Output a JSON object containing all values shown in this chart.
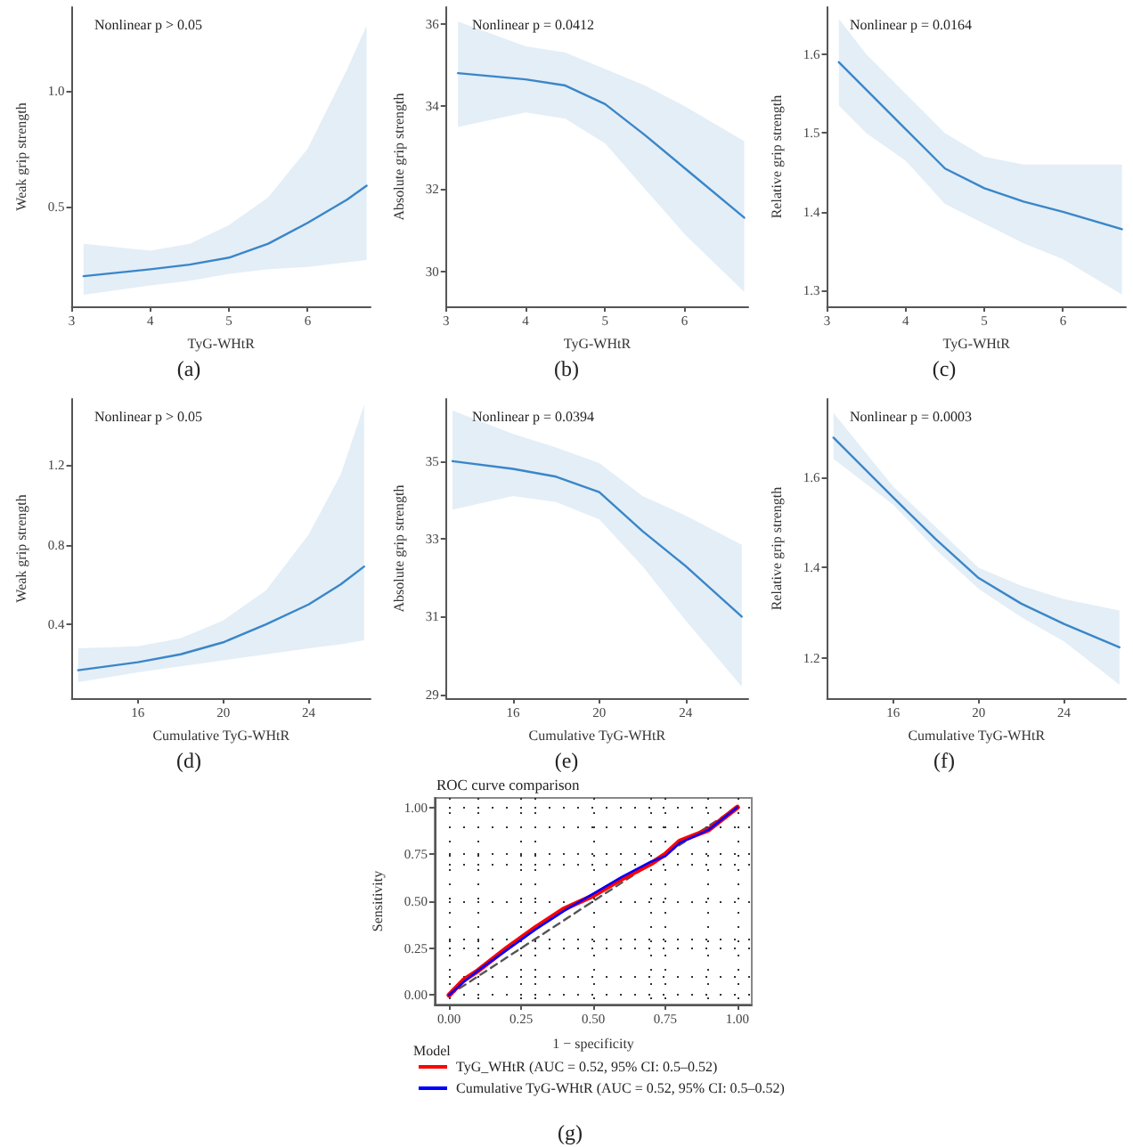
{
  "chart_data": [
    {
      "type": "line",
      "xlabel": "TyG-WHtR",
      "ylabel": "Weak grip strength",
      "annotations": [
        "Nonlinear p > 0.05",
        "(a)"
      ],
      "marker": "none",
      "grid": false,
      "x": [
        3.15,
        4,
        4.5,
        5,
        5.5,
        6,
        6.5,
        6.75
      ],
      "xlim": [
        3,
        6.8
      ],
      "xticks": [
        3,
        4,
        5,
        6
      ],
      "ylim": [
        0.07,
        1.36
      ],
      "yticks": [
        0.5,
        {
          "value": 1,
          "label": "1.0"
        }
      ],
      "series": [
        {
          "color": "#3a86c8",
          "values": [
            0.2,
            0.23,
            0.25,
            0.28,
            0.34,
            0.43,
            0.53,
            0.59
          ],
          "lower": [
            0.12,
            0.16,
            0.18,
            0.21,
            0.23,
            0.24,
            0.26,
            0.27
          ],
          "upper": [
            0.34,
            0.31,
            0.34,
            0.42,
            0.54,
            0.75,
            1.09,
            1.28
          ]
        }
      ]
    },
    {
      "type": "line",
      "xlabel": "TyG-WHtR",
      "ylabel": "Absolute grip strength",
      "annotations": [
        "Nonlinear p = 0.0412",
        "(b)"
      ],
      "marker": "none",
      "grid": false,
      "x": [
        3.15,
        4,
        4.5,
        5,
        5.5,
        6,
        6.75
      ],
      "xlim": [
        3,
        6.8
      ],
      "xticks": [
        3,
        4,
        5,
        6
      ],
      "ylim": [
        29.15,
        36.4
      ],
      "yticks": [
        30,
        32,
        34,
        36
      ],
      "series": [
        {
          "color": "#3a86c8",
          "values": [
            34.8,
            34.65,
            34.5,
            34.05,
            33.3,
            32.5,
            31.3
          ],
          "lower": [
            33.5,
            33.85,
            33.7,
            33.1,
            32.0,
            30.9,
            29.5
          ],
          "upper": [
            36.05,
            35.45,
            35.3,
            34.9,
            34.5,
            34.0,
            33.15
          ]
        }
      ]
    },
    {
      "type": "line",
      "xlabel": "TyG-WHtR",
      "ylabel": "Relative grip strength",
      "annotations": [
        "Nonlinear p = 0.0164",
        "(c)"
      ],
      "marker": "none",
      "grid": false,
      "x": [
        3.15,
        3.5,
        4,
        4.5,
        5,
        5.5,
        6,
        6.75
      ],
      "xlim": [
        3,
        6.8
      ],
      "xticks": [
        3,
        4,
        5,
        6
      ],
      "ylim": [
        1.28,
        1.66
      ],
      "yticks": [
        1.3,
        1.4,
        1.5,
        1.6
      ],
      "series": [
        {
          "color": "#3a86c8",
          "values": [
            1.59,
            1.555,
            1.505,
            1.455,
            1.43,
            1.413,
            1.4,
            1.378
          ],
          "lower": [
            1.535,
            1.5,
            1.465,
            1.41,
            1.385,
            1.36,
            1.34,
            1.295
          ],
          "upper": [
            1.645,
            1.6,
            1.55,
            1.5,
            1.47,
            1.46,
            1.46,
            1.46
          ]
        }
      ]
    },
    {
      "type": "line",
      "xlabel": "Cumulative TyG-WHtR",
      "ylabel": "Weak grip strength",
      "annotations": [
        "Nonlinear p > 0.05",
        "(d)"
      ],
      "marker": "none",
      "grid": false,
      "x": [
        13.2,
        16,
        18,
        20,
        22,
        24,
        25.5,
        26.6
      ],
      "xlim": [
        12.9,
        26.9
      ],
      "xticks": [
        16,
        20,
        24
      ],
      "ylim": [
        0.03,
        1.53
      ],
      "yticks": [
        0.4,
        0.8,
        1.2
      ],
      "series": [
        {
          "color": "#3a86c8",
          "values": [
            0.17,
            0.21,
            0.25,
            0.31,
            0.4,
            0.5,
            0.6,
            0.69
          ],
          "lower": [
            0.11,
            0.16,
            0.19,
            0.22,
            0.25,
            0.28,
            0.3,
            0.32
          ],
          "upper": [
            0.28,
            0.29,
            0.33,
            0.42,
            0.57,
            0.85,
            1.15,
            1.5
          ]
        }
      ]
    },
    {
      "type": "line",
      "xlabel": "Cumulative TyG-WHtR",
      "ylabel": "Absolute grip strength",
      "annotations": [
        "Nonlinear p = 0.0394",
        "(e)"
      ],
      "marker": "none",
      "grid": false,
      "x": [
        13.2,
        16,
        18,
        20,
        22,
        24,
        26.6
      ],
      "xlim": [
        12.9,
        26.9
      ],
      "xticks": [
        16,
        20,
        24
      ],
      "ylim": [
        28.9,
        36.6
      ],
      "yticks": [
        29,
        31,
        33,
        35
      ],
      "series": [
        {
          "color": "#3a86c8",
          "values": [
            35.0,
            34.8,
            34.6,
            34.2,
            33.2,
            32.3,
            31.0
          ],
          "lower": [
            33.75,
            34.1,
            33.95,
            33.5,
            32.3,
            30.9,
            29.2
          ],
          "upper": [
            36.3,
            35.7,
            35.35,
            34.95,
            34.1,
            33.6,
            32.85
          ]
        }
      ]
    },
    {
      "type": "line",
      "xlabel": "Cumulative TyG-WHtR",
      "ylabel": "Relative grip strength",
      "annotations": [
        "Nonlinear p = 0.0003",
        "(f)"
      ],
      "marker": "none",
      "grid": false,
      "x": [
        13.2,
        16,
        18,
        20,
        22,
        24,
        26.6
      ],
      "xlim": [
        12.9,
        26.9
      ],
      "xticks": [
        16,
        20,
        24
      ],
      "ylim": [
        1.11,
        1.775
      ],
      "yticks": [
        1.2,
        1.4,
        1.6
      ],
      "series": [
        {
          "color": "#3a86c8",
          "values": [
            1.689,
            1.556,
            1.463,
            1.377,
            1.32,
            1.275,
            1.223
          ],
          "lower": [
            1.642,
            1.54,
            1.44,
            1.353,
            1.29,
            1.236,
            1.14
          ],
          "upper": [
            1.744,
            1.58,
            1.49,
            1.4,
            1.36,
            1.33,
            1.305
          ]
        }
      ]
    },
    {
      "type": "line",
      "title": "ROC curve comparison",
      "xlabel": "1 − specificity",
      "ylabel": "Sensitivity",
      "legend_title": "Model",
      "legend": "bottom",
      "annotations": [
        "(g)"
      ],
      "marker": "none",
      "grid": true,
      "xlim": [
        -0.05,
        1.05
      ],
      "ylim": [
        -0.05,
        1.05
      ],
      "xticks": [
        {
          "value": 0,
          "label": "0.00"
        },
        {
          "value": 0.25,
          "label": "0.25"
        },
        {
          "value": 0.5,
          "label": "0.50"
        },
        {
          "value": 0.75,
          "label": "0.75"
        },
        {
          "value": 1,
          "label": "1.00"
        }
      ],
      "yticks": [
        {
          "value": 0,
          "label": "0.00"
        },
        {
          "value": 0.25,
          "label": "0.25"
        },
        {
          "value": 0.5,
          "label": "0.50"
        },
        {
          "value": 0.75,
          "label": "0.75"
        },
        {
          "value": 1,
          "label": "1.00"
        }
      ],
      "series": [
        {
          "x": [
            0,
            1
          ],
          "values": [
            0,
            1
          ],
          "color": "#555555",
          "line_style": "dashed"
        },
        {
          "name": "TyG_WHtR (AUC = 0.52, 95% CI: 0.5–0.52)",
          "color": "#ff0000",
          "x": [
            0,
            0.05,
            0.1,
            0.2,
            0.3,
            0.4,
            0.5,
            0.6,
            0.7,
            0.75,
            0.8,
            0.9,
            1
          ],
          "values": [
            0,
            0.08,
            0.13,
            0.25,
            0.36,
            0.46,
            0.53,
            0.62,
            0.7,
            0.75,
            0.82,
            0.88,
            1
          ]
        },
        {
          "name": "Cumulative TyG-WHtR (AUC = 0.52, 95% CI: 0.5–0.52)",
          "color": "#0000ff",
          "x": [
            0,
            0.05,
            0.1,
            0.2,
            0.3,
            0.4,
            0.5,
            0.6,
            0.7,
            0.75,
            0.8,
            0.9,
            1
          ],
          "values": [
            0,
            0.07,
            0.13,
            0.24,
            0.35,
            0.45,
            0.54,
            0.63,
            0.71,
            0.74,
            0.81,
            0.88,
            1
          ]
        }
      ]
    }
  ]
}
